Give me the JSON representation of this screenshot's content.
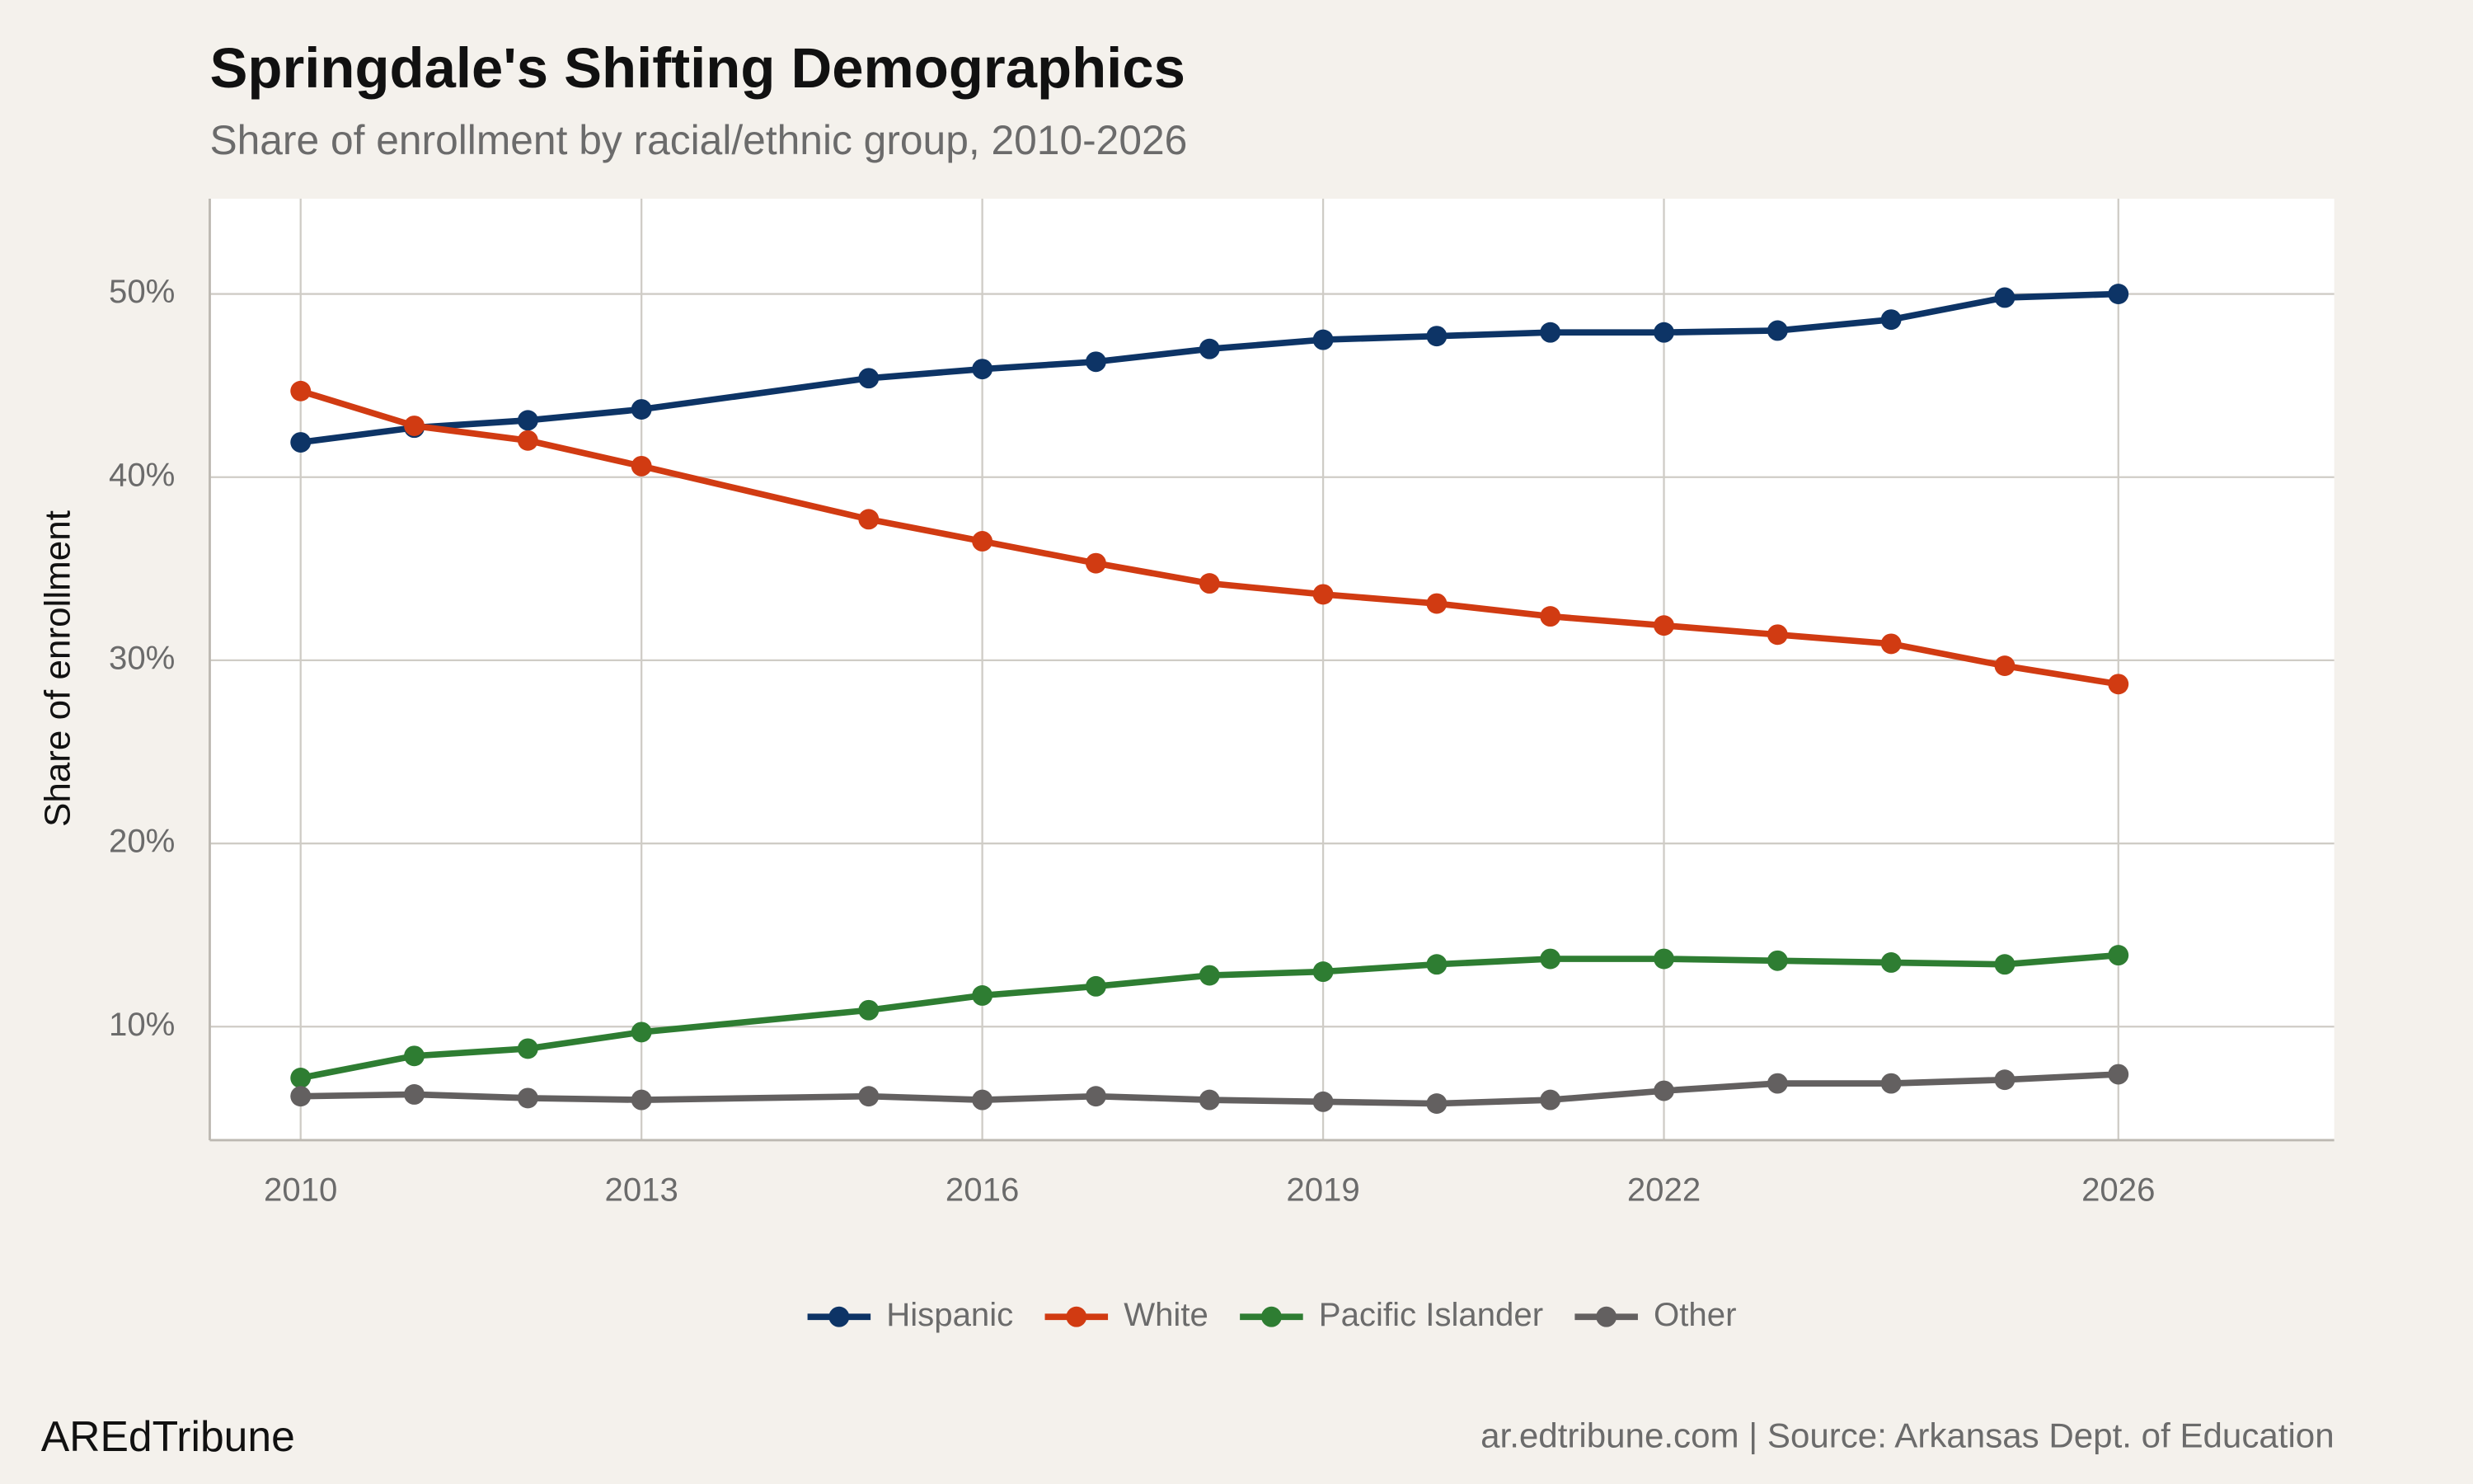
{
  "chart_data": {
    "type": "line",
    "title": "Springdale's Shifting Demographics",
    "subtitle": "Share of enrollment by racial/ethnic group, 2010-2026",
    "y_label": "Share of enrollment",
    "caption_left": "AREdTribune",
    "caption_right": "ar.edtribune.com | Source: Arkansas Dept. of Education",
    "x": [
      2010,
      2011,
      2012,
      2013,
      2015,
      2016,
      2017,
      2018,
      2019,
      2020,
      2021,
      2022,
      2023,
      2024,
      2025,
      2026
    ],
    "series": [
      {
        "name": "Hispanic",
        "color": "#0d3466",
        "values": [
          41.9,
          42.7,
          43.1,
          43.7,
          45.4,
          45.9,
          46.3,
          47.0,
          47.5,
          47.7,
          47.9,
          47.9,
          48.0,
          48.6,
          49.8,
          50.0
        ]
      },
      {
        "name": "White",
        "color": "#d13b12",
        "values": [
          44.7,
          42.8,
          42.0,
          40.6,
          37.7,
          36.5,
          35.3,
          34.2,
          33.6,
          33.1,
          32.4,
          31.9,
          31.4,
          30.9,
          29.7,
          28.7
        ]
      },
      {
        "name": "Pacific Islander",
        "color": "#2e7d32",
        "values": [
          7.2,
          8.4,
          8.8,
          9.7,
          10.9,
          11.7,
          12.2,
          12.8,
          13.0,
          13.4,
          13.7,
          13.7,
          13.6,
          13.5,
          13.4,
          13.9
        ]
      },
      {
        "name": "Other",
        "color": "#636060",
        "values": [
          6.2,
          6.3,
          6.1,
          6.0,
          6.2,
          6.0,
          6.2,
          6.0,
          5.9,
          5.8,
          6.0,
          6.5,
          6.9,
          6.9,
          7.1,
          7.4
        ]
      }
    ],
    "xlim": [
      2009.2,
      2027.9
    ],
    "ylim": [
      3.8,
      55.2
    ],
    "xticks": [
      2010,
      2013,
      2016,
      2019,
      2022,
      2026
    ],
    "yticks": [
      {
        "value": 10,
        "label": "10%"
      },
      {
        "value": 20,
        "label": "20%"
      },
      {
        "value": 30,
        "label": "30%"
      },
      {
        "value": 40,
        "label": "40%"
      },
      {
        "value": 50,
        "label": "50%"
      }
    ],
    "grid": true,
    "legend": "bottom"
  }
}
